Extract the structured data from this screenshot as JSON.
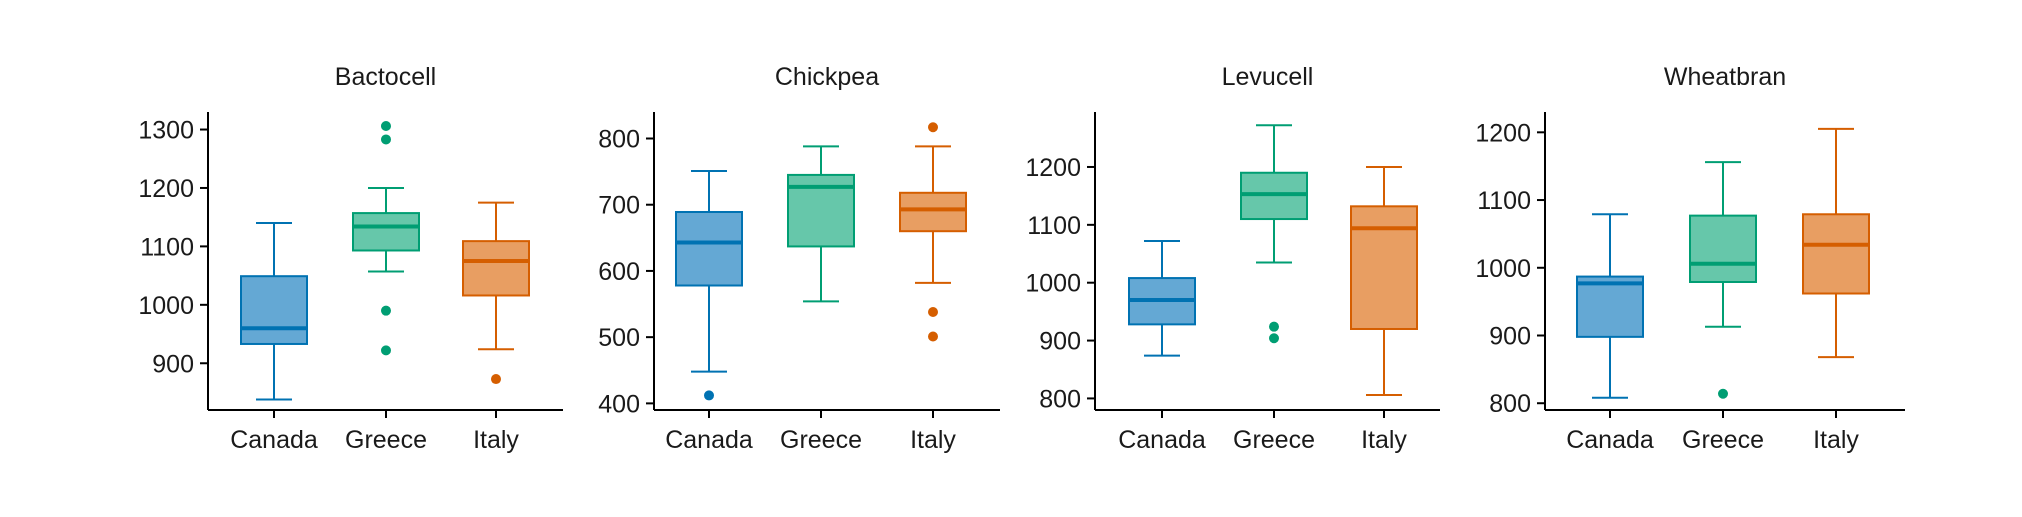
{
  "chart_data": [
    {
      "type": "box",
      "title": "Bactocell",
      "categories": [
        "Canada",
        "Greece",
        "Italy"
      ],
      "yticks": [
        900,
        1000,
        1100,
        1200,
        1300
      ],
      "ylim": [
        820,
        1330
      ],
      "boxes": [
        {
          "category": "Canada",
          "whisker_low": 838,
          "q1": 933,
          "median": 960,
          "q3": 1049,
          "whisker_high": 1140,
          "outliers": []
        },
        {
          "category": "Greece",
          "whisker_low": 1057,
          "q1": 1093,
          "median": 1134,
          "q3": 1157,
          "whisker_high": 1200,
          "outliers": [
            1306,
            1283,
            990,
            922
          ]
        },
        {
          "category": "Italy",
          "whisker_low": 924,
          "q1": 1016,
          "median": 1075,
          "q3": 1109,
          "whisker_high": 1175,
          "outliers": [
            873
          ]
        }
      ]
    },
    {
      "type": "box",
      "title": "Chickpea",
      "categories": [
        "Canada",
        "Greece",
        "Italy"
      ],
      "yticks": [
        400,
        500,
        600,
        700,
        800
      ],
      "ylim": [
        390,
        840
      ],
      "boxes": [
        {
          "category": "Canada",
          "whisker_low": 448,
          "q1": 578,
          "median": 643,
          "q3": 689,
          "whisker_high": 751,
          "outliers": [
            412
          ]
        },
        {
          "category": "Greece",
          "whisker_low": 554,
          "q1": 637,
          "median": 727,
          "q3": 745,
          "whisker_high": 788,
          "outliers": []
        },
        {
          "category": "Italy",
          "whisker_low": 582,
          "q1": 660,
          "median": 693,
          "q3": 718,
          "whisker_high": 788,
          "outliers": [
            817,
            538,
            501
          ]
        }
      ]
    },
    {
      "type": "box",
      "title": "Levucell",
      "categories": [
        "Canada",
        "Greece",
        "Italy"
      ],
      "yticks": [
        800,
        900,
        1000,
        1100,
        1200
      ],
      "ylim": [
        780,
        1295
      ],
      "boxes": [
        {
          "category": "Canada",
          "whisker_low": 874,
          "q1": 928,
          "median": 970,
          "q3": 1008,
          "whisker_high": 1072,
          "outliers": []
        },
        {
          "category": "Greece",
          "whisker_low": 1035,
          "q1": 1110,
          "median": 1153,
          "q3": 1190,
          "whisker_high": 1272,
          "outliers": [
            924,
            904
          ]
        },
        {
          "category": "Italy",
          "whisker_low": 806,
          "q1": 920,
          "median": 1094,
          "q3": 1132,
          "whisker_high": 1200,
          "outliers": []
        }
      ]
    },
    {
      "type": "box",
      "title": "Wheatbran",
      "categories": [
        "Canada",
        "Greece",
        "Italy"
      ],
      "yticks": [
        800,
        900,
        1000,
        1100,
        1200
      ],
      "ylim": [
        790,
        1230
      ],
      "boxes": [
        {
          "category": "Canada",
          "whisker_low": 808,
          "q1": 898,
          "median": 977,
          "q3": 987,
          "whisker_high": 1079,
          "outliers": []
        },
        {
          "category": "Greece",
          "whisker_low": 913,
          "q1": 979,
          "median": 1006,
          "q3": 1077,
          "whisker_high": 1156,
          "outliers": [
            814
          ]
        },
        {
          "category": "Italy",
          "whisker_low": 868,
          "q1": 962,
          "median": 1034,
          "q3": 1079,
          "whisker_high": 1205,
          "outliers": []
        }
      ]
    }
  ],
  "colors": {
    "Canada": {
      "line": "#0072b2",
      "fill": "#64a8d4"
    },
    "Greece": {
      "line": "#009e73",
      "fill": "#66c7aa"
    },
    "Italy": {
      "line": "#d55e00",
      "fill": "#e89e62"
    },
    "axis": "#000000"
  }
}
